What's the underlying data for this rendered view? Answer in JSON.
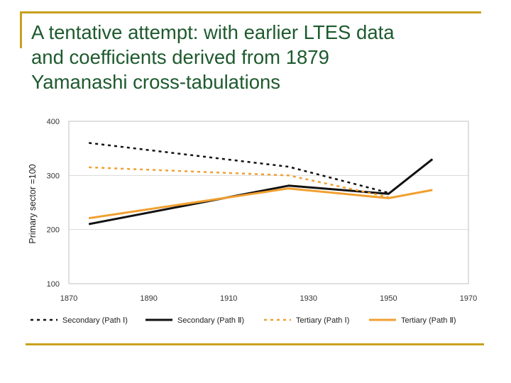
{
  "slide": {
    "title_lines": [
      "A tentative attempt: with earlier LTES data",
      "and coefficients derived from 1879",
      "Yamanashi cross-tabulations"
    ]
  },
  "colors": {
    "accent_rule": "#c8a11e",
    "title_text": "#1e5a2e",
    "secondary": "#111111",
    "tertiary": "#f0a030",
    "grid": "#d9d9d9"
  },
  "chart_data": {
    "type": "line",
    "title": "",
    "xlabel": "",
    "ylabel": "Primary sector =100",
    "xlim": [
      1870,
      1970
    ],
    "ylim": [
      100,
      400
    ],
    "x_ticks": [
      "1870",
      "1890",
      "1910",
      "1930",
      "1950",
      "1970"
    ],
    "y_ticks": [
      "100",
      "200",
      "300",
      "400"
    ],
    "grid": "horizontal",
    "legend_position": "bottom",
    "series": [
      {
        "name": "Secondary (Path Ⅰ)",
        "style": "dashed",
        "color": "#111111",
        "x": [
          1875,
          1925,
          1950
        ],
        "y": [
          360,
          316,
          268
        ]
      },
      {
        "name": "Secondary (Path Ⅱ)",
        "style": "solid",
        "color": "#111111",
        "x": [
          1875,
          1925,
          1950,
          1961
        ],
        "y": [
          210,
          281,
          266,
          330
        ]
      },
      {
        "name": "Tertiary (Path Ⅰ)",
        "style": "dashed",
        "color": "#f0a030",
        "x": [
          1875,
          1925,
          1950
        ],
        "y": [
          315,
          300,
          260
        ]
      },
      {
        "name": "Tertiary (Path Ⅱ)",
        "style": "solid",
        "color": "#f0a030",
        "x": [
          1875,
          1925,
          1950,
          1961
        ],
        "y": [
          221,
          276,
          258,
          273
        ]
      }
    ]
  }
}
